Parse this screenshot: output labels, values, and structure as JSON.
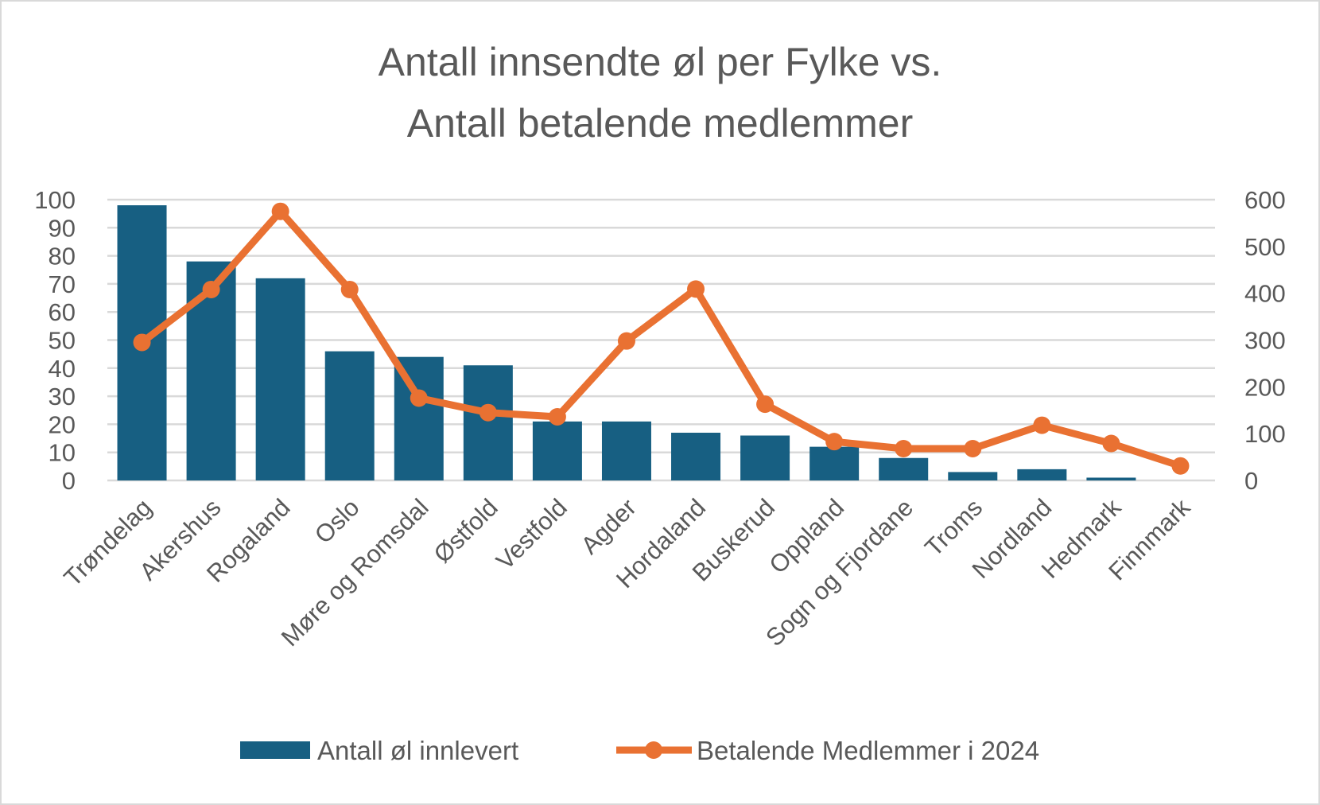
{
  "chart_data": {
    "type": "bar+line",
    "title_lines": [
      "Antall innsendte øl per Fylke vs.",
      "Antall betalende medlemmer"
    ],
    "categories": [
      "Trøndelag",
      "Akershus",
      "Rogaland",
      "Oslo",
      "Møre og Romsdal",
      "Østfold",
      "Vestfold",
      "Agder",
      "Hordaland",
      "Buskerud",
      "Oppland",
      "Sogn og Fjordane",
      "Troms",
      "Nordland",
      "Hedmark",
      "Finnmark"
    ],
    "series": [
      {
        "name": "Antall øl innlevert",
        "type": "bar",
        "axis": "left",
        "color": "#175f82",
        "values": [
          98,
          78,
          72,
          46,
          44,
          41,
          21,
          21,
          17,
          16,
          12,
          8,
          3,
          4,
          1,
          0
        ]
      },
      {
        "name": "Betalende Medlemmer i 2024",
        "type": "line",
        "axis": "right",
        "color": "#e97132",
        "values": [
          295,
          408,
          575,
          408,
          176,
          145,
          136,
          298,
          409,
          163,
          83,
          68,
          68,
          118,
          79,
          31
        ]
      }
    ],
    "left_axis": {
      "ylim": [
        0,
        100
      ],
      "ticks": [
        "0",
        "10",
        "20",
        "30",
        "40",
        "50",
        "60",
        "70",
        "80",
        "90",
        "100"
      ]
    },
    "right_axis": {
      "ylim": [
        0,
        600
      ],
      "ticks": [
        "0",
        "100",
        "200",
        "300",
        "400",
        "500",
        "600"
      ]
    },
    "grid": true,
    "legend": "bottom"
  }
}
